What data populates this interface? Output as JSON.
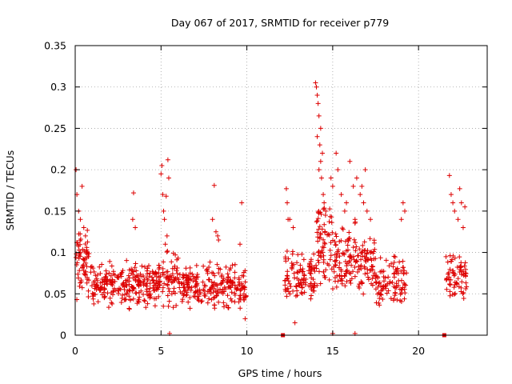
{
  "chart_data": {
    "type": "scatter",
    "title": "Day 067 of 2017, SRMTID for receiver p779",
    "xlabel": "GPS time / hours",
    "ylabel": "SRMTID / TECUs",
    "xlim": [
      0,
      24
    ],
    "ylim": [
      0,
      0.35
    ],
    "x_ticks": [
      0,
      5,
      10,
      15,
      20
    ],
    "x_tick_labels": [
      "0",
      "5",
      "10",
      "15",
      "20"
    ],
    "y_ticks": [
      0,
      0.05,
      0.1,
      0.15,
      0.2,
      0.25,
      0.3,
      0.35
    ],
    "y_tick_labels": [
      "0",
      "0.05",
      "0.1",
      "0.15",
      "0.2",
      "0.25",
      "0.3",
      "0.35"
    ],
    "grid": true,
    "marker": "+",
    "series": [
      {
        "name": "SRMTID",
        "color": "#dd0000",
        "clusters": [
          {
            "x_start": 0.0,
            "x_end": 1.0,
            "y_base": 0.085,
            "y_spread": 0.035,
            "count": 70
          },
          {
            "x_start": 1.0,
            "x_end": 5.0,
            "y_base": 0.062,
            "y_spread": 0.022,
            "count": 260
          },
          {
            "x_start": 5.0,
            "x_end": 6.0,
            "y_base": 0.07,
            "y_spread": 0.03,
            "count": 55
          },
          {
            "x_start": 6.0,
            "x_end": 10.0,
            "y_base": 0.058,
            "y_spread": 0.022,
            "count": 230
          },
          {
            "x_start": 12.2,
            "x_end": 14.0,
            "y_base": 0.068,
            "y_spread": 0.028,
            "count": 110
          },
          {
            "x_start": 14.0,
            "x_end": 15.0,
            "y_base": 0.11,
            "y_spread": 0.05,
            "count": 70
          },
          {
            "x_start": 15.0,
            "x_end": 17.5,
            "y_base": 0.088,
            "y_spread": 0.035,
            "count": 160
          },
          {
            "x_start": 17.5,
            "x_end": 19.3,
            "y_base": 0.065,
            "y_spread": 0.025,
            "count": 100
          },
          {
            "x_start": 21.6,
            "x_end": 22.8,
            "y_base": 0.075,
            "y_spread": 0.03,
            "count": 70
          }
        ],
        "points": [
          [
            0.05,
            0.2
          ],
          [
            0.1,
            0.17
          ],
          [
            0.2,
            0.15
          ],
          [
            0.3,
            0.14
          ],
          [
            0.4,
            0.18
          ],
          [
            0.5,
            0.13
          ],
          [
            0.6,
            0.12
          ],
          [
            3.4,
            0.172
          ],
          [
            3.35,
            0.14
          ],
          [
            3.5,
            0.13
          ],
          [
            5.0,
            0.195
          ],
          [
            5.05,
            0.205
          ],
          [
            5.1,
            0.17
          ],
          [
            5.15,
            0.15
          ],
          [
            5.2,
            0.14
          ],
          [
            5.3,
            0.168
          ],
          [
            5.4,
            0.212
          ],
          [
            5.45,
            0.19
          ],
          [
            5.35,
            0.12
          ],
          [
            5.25,
            0.11
          ],
          [
            5.5,
            0.002
          ],
          [
            8.1,
            0.181
          ],
          [
            8.0,
            0.14
          ],
          [
            8.2,
            0.125
          ],
          [
            8.3,
            0.12
          ],
          [
            8.35,
            0.115
          ],
          [
            9.7,
            0.16
          ],
          [
            9.6,
            0.11
          ],
          [
            9.9,
            0.02
          ],
          [
            12.3,
            0.177
          ],
          [
            12.35,
            0.16
          ],
          [
            12.4,
            0.14
          ],
          [
            12.5,
            0.14
          ],
          [
            12.7,
            0.13
          ],
          [
            12.8,
            0.015
          ],
          [
            14.0,
            0.305
          ],
          [
            14.05,
            0.3
          ],
          [
            14.1,
            0.29
          ],
          [
            14.15,
            0.28
          ],
          [
            14.2,
            0.265
          ],
          [
            14.3,
            0.25
          ],
          [
            14.1,
            0.24
          ],
          [
            14.25,
            0.23
          ],
          [
            14.3,
            0.21
          ],
          [
            14.35,
            0.19
          ],
          [
            14.4,
            0.22
          ],
          [
            14.45,
            0.17
          ],
          [
            14.5,
            0.16
          ],
          [
            14.6,
            0.15
          ],
          [
            14.2,
            0.2
          ],
          [
            14.9,
            0.19
          ],
          [
            15.0,
            0.18
          ],
          [
            15.2,
            0.22
          ],
          [
            15.3,
            0.2
          ],
          [
            15.5,
            0.17
          ],
          [
            15.8,
            0.16
          ],
          [
            16.0,
            0.21
          ],
          [
            16.2,
            0.18
          ],
          [
            16.4,
            0.19
          ],
          [
            16.6,
            0.17
          ],
          [
            16.8,
            0.16
          ],
          [
            17.0,
            0.15
          ],
          [
            17.2,
            0.14
          ],
          [
            15.7,
            0.15
          ],
          [
            16.3,
            0.14
          ],
          [
            16.7,
            0.18
          ],
          [
            16.9,
            0.2
          ],
          [
            15.0,
            0.002
          ],
          [
            16.3,
            0.002
          ],
          [
            19.1,
            0.16
          ],
          [
            19.2,
            0.15
          ],
          [
            19.0,
            0.14
          ],
          [
            21.8,
            0.193
          ],
          [
            21.9,
            0.17
          ],
          [
            22.0,
            0.16
          ],
          [
            22.1,
            0.15
          ],
          [
            22.4,
            0.177
          ],
          [
            22.5,
            0.16
          ],
          [
            22.7,
            0.155
          ],
          [
            22.3,
            0.14
          ],
          [
            22.6,
            0.13
          ]
        ],
        "zero_markers": [
          12.1,
          21.5
        ]
      }
    ]
  }
}
